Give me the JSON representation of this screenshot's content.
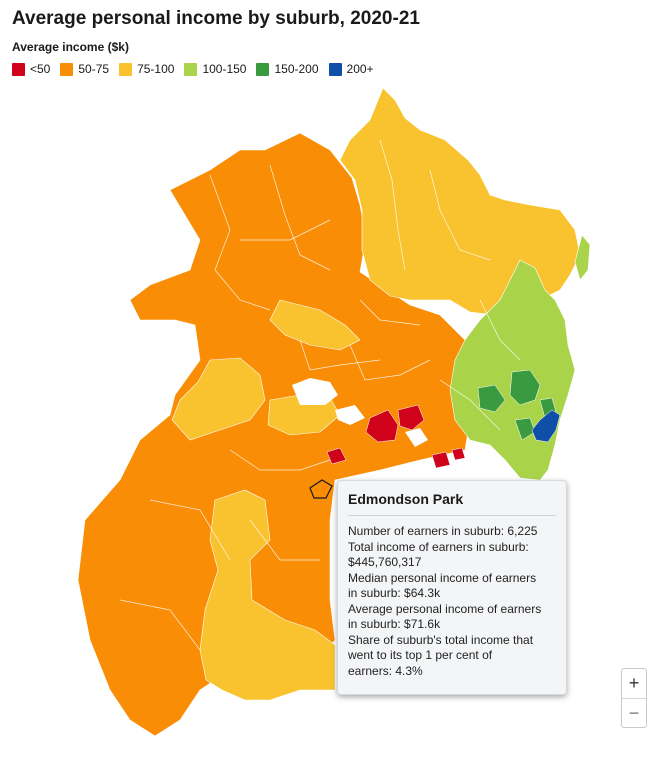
{
  "title": "Average personal income by suburb, 2020-21",
  "legend": {
    "title": "Average income ($k)",
    "items": [
      {
        "label": "<50",
        "color": "#d0021b"
      },
      {
        "label": "50-75",
        "color": "#f98d06"
      },
      {
        "label": "75-100",
        "color": "#f9c32f"
      },
      {
        "label": "100-150",
        "color": "#a9d44a"
      },
      {
        "label": "150-200",
        "color": "#3a9a3f"
      },
      {
        "label": "200+",
        "color": "#0f4fa8"
      }
    ]
  },
  "tooltip": {
    "title": "Edmondson Park",
    "lines": [
      "Number of earners in suburb: 6,225",
      "Total income of earners in suburb:",
      "$445,760,317",
      "Median personal income of earners",
      "in suburb: $64.3k",
      "Average personal income of earners",
      "in suburb: $71.6k",
      "Share of suburb's total income that",
      "went to its top 1 per cent of",
      "earners: 4.3%"
    ]
  },
  "zoom": {
    "in": "+",
    "out": "−"
  }
}
